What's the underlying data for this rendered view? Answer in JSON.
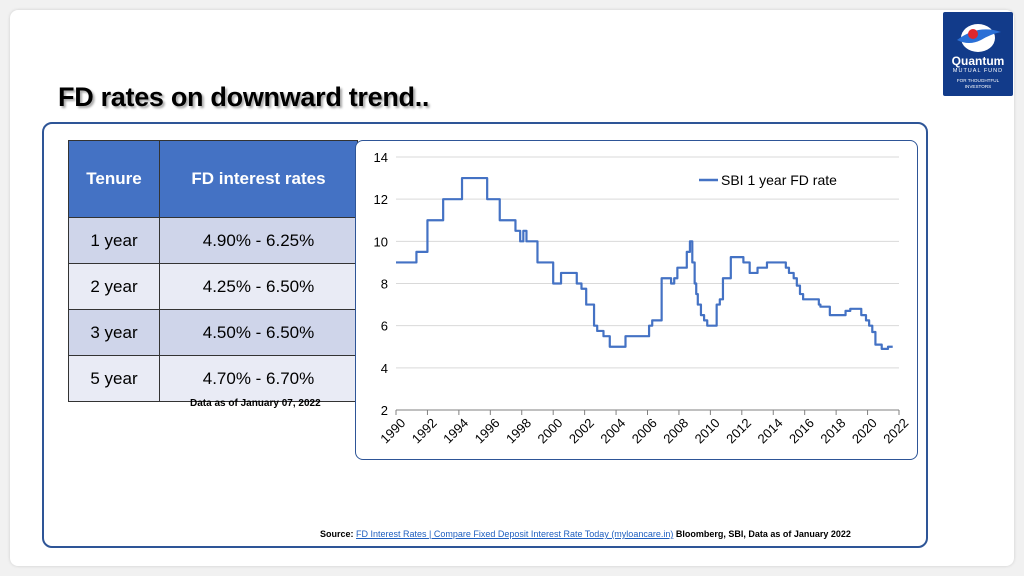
{
  "slide": {
    "title": "FD rates on downward trend..",
    "logo": {
      "name": "Quantum",
      "subtitle": "MUTUAL FUND",
      "tagline_1": "FOR THOUGHTFUL",
      "tagline_2": "INVESTORS"
    },
    "table": {
      "headers": [
        "Tenure",
        "FD interest rates"
      ],
      "rows": [
        {
          "tenure": "1 year",
          "rate": "4.90% - 6.25%"
        },
        {
          "tenure": "2 year",
          "rate": "4.25% - 6.50%"
        },
        {
          "tenure": "3 year",
          "rate": "4.50% - 6.50%"
        },
        {
          "tenure": "5 year",
          "rate": "4.70% - 6.70%"
        }
      ],
      "note": "Data as of January 07, 2022"
    },
    "source": {
      "label": "Source:",
      "link_text": "FD Interest Rates | Compare Fixed Deposit Interest Rate Today (myloancare.in)",
      "rest": "Bloomberg, SBI, Data as of January 2022"
    }
  },
  "chart_data": {
    "type": "line",
    "title": "",
    "xlabel": "",
    "ylabel": "",
    "xlim": [
      1990,
      2022
    ],
    "ylim": [
      2,
      14
    ],
    "yticks": [
      2,
      4,
      6,
      8,
      10,
      12,
      14
    ],
    "xticks": [
      1990,
      1992,
      1994,
      1996,
      1998,
      2000,
      2002,
      2004,
      2006,
      2008,
      2010,
      2012,
      2014,
      2016,
      2018,
      2020,
      2022
    ],
    "grid": "horizontal",
    "legend": "top-right",
    "series": [
      {
        "name": "SBI 1 year FD rate",
        "color": "#4472c4",
        "step": true,
        "points": [
          [
            1990,
            9.0
          ],
          [
            1991.3,
            9.5
          ],
          [
            1992.0,
            11.0
          ],
          [
            1993.0,
            12.0
          ],
          [
            1994.2,
            13.0
          ],
          [
            1995.8,
            12.0
          ],
          [
            1996.6,
            11.0
          ],
          [
            1997.6,
            10.5
          ],
          [
            1997.9,
            10.0
          ],
          [
            1998.1,
            10.5
          ],
          [
            1998.3,
            10.0
          ],
          [
            1999.0,
            9.0
          ],
          [
            2000.0,
            8.0
          ],
          [
            2000.5,
            8.5
          ],
          [
            2001.5,
            8.0
          ],
          [
            2001.8,
            7.75
          ],
          [
            2002.1,
            7.0
          ],
          [
            2002.6,
            6.0
          ],
          [
            2002.8,
            5.75
          ],
          [
            2003.2,
            5.5
          ],
          [
            2003.6,
            5.0
          ],
          [
            2004.6,
            5.5
          ],
          [
            2006.1,
            6.0
          ],
          [
            2006.3,
            6.25
          ],
          [
            2006.9,
            8.25
          ],
          [
            2007.5,
            8.0
          ],
          [
            2007.7,
            8.25
          ],
          [
            2007.9,
            8.75
          ],
          [
            2008.5,
            9.5
          ],
          [
            2008.7,
            10.0
          ],
          [
            2008.85,
            9.0
          ],
          [
            2009.0,
            8.0
          ],
          [
            2009.1,
            7.5
          ],
          [
            2009.2,
            7.0
          ],
          [
            2009.4,
            6.5
          ],
          [
            2009.6,
            6.25
          ],
          [
            2009.8,
            6.0
          ],
          [
            2010.4,
            7.0
          ],
          [
            2010.6,
            7.25
          ],
          [
            2010.8,
            8.25
          ],
          [
            2011.3,
            9.25
          ],
          [
            2012.1,
            9.0
          ],
          [
            2012.5,
            8.5
          ],
          [
            2013.0,
            8.75
          ],
          [
            2013.6,
            9.0
          ],
          [
            2014.8,
            8.75
          ],
          [
            2015.0,
            8.5
          ],
          [
            2015.3,
            8.25
          ],
          [
            2015.5,
            7.9
          ],
          [
            2015.7,
            7.5
          ],
          [
            2015.9,
            7.25
          ],
          [
            2016.9,
            7.0
          ],
          [
            2017.0,
            6.9
          ],
          [
            2017.6,
            6.5
          ],
          [
            2018.6,
            6.7
          ],
          [
            2018.9,
            6.8
          ],
          [
            2019.6,
            6.5
          ],
          [
            2019.9,
            6.25
          ],
          [
            2020.1,
            6.0
          ],
          [
            2020.3,
            5.7
          ],
          [
            2020.5,
            5.1
          ],
          [
            2020.9,
            4.9
          ],
          [
            2021.3,
            5.0
          ],
          [
            2021.6,
            5.0
          ]
        ]
      }
    ]
  }
}
